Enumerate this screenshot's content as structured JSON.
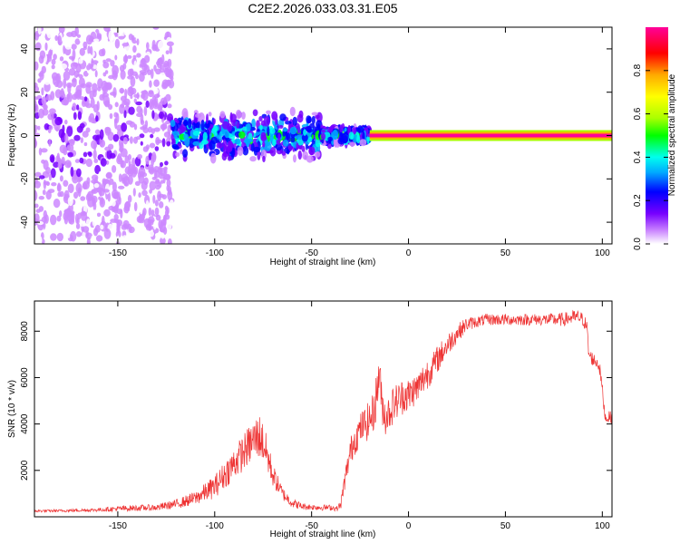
{
  "title": "C2E2.2026.033.03.31.E05",
  "colors": {
    "trace": "#ee3333",
    "axis": "#000000",
    "colormap": [
      "#ffffff",
      "#cc88ff",
      "#7700ff",
      "#0000ff",
      "#00aaff",
      "#00ffee",
      "#00ff00",
      "#aaff00",
      "#ffff00",
      "#ffaa00",
      "#ff0000",
      "#ff0099"
    ]
  },
  "chart_data": [
    {
      "type": "heatmap",
      "name": "spectrogram",
      "xlabel": "Height of straight line (km)",
      "ylabel": "Frequency (Hz)",
      "xlim": [
        -193,
        105
      ],
      "ylim": [
        -50,
        50
      ],
      "x_ticks": [
        -150,
        -100,
        -50,
        0,
        50,
        100
      ],
      "x_tick_labels": [
        "-150",
        "-100",
        "-50",
        "0",
        "50",
        "100"
      ],
      "y_ticks": [
        -40,
        -20,
        0,
        20,
        40
      ],
      "y_tick_labels": [
        "-40",
        "-20",
        "0",
        "20",
        "40"
      ],
      "colorbar": {
        "label": "Normalized spectral amplitude",
        "range": [
          0,
          1
        ],
        "ticks": [
          0.0,
          0.2,
          0.4,
          0.6,
          0.8
        ],
        "tick_labels": [
          "0.0",
          "0.2",
          "0.4",
          "0.6",
          "0.8"
        ]
      },
      "regions": [
        {
          "from": -193,
          "to": -122,
          "description": "broadband noise",
          "freq_spread_hz": 50,
          "amplitude": 0.15
        },
        {
          "from": -122,
          "to": -45,
          "description": "signal spread near 0 Hz",
          "freq_spread_hz": 12,
          "amplitude": 0.45
        },
        {
          "from": -45,
          "to": -20,
          "description": "narrowing signal",
          "freq_spread_hz": 4,
          "amplitude": 0.5
        },
        {
          "from": -20,
          "to": 105,
          "description": "clean carrier at 0 Hz",
          "freq_spread_hz": 1.5,
          "amplitude": 1.0
        }
      ]
    },
    {
      "type": "line",
      "name": "snr",
      "xlabel": "Height of straight line (km)",
      "ylabel": "SNR (10 * v/v)",
      "xlim": [
        -193,
        105
      ],
      "ylim": [
        0,
        9300
      ],
      "x_ticks": [
        -150,
        -100,
        -50,
        0,
        50,
        100
      ],
      "x_tick_labels": [
        "-150",
        "-100",
        "-50",
        "0",
        "50",
        "100"
      ],
      "y_ticks": [
        2000,
        4000,
        6000,
        8000
      ],
      "y_tick_labels": [
        "2000",
        "4000",
        "6000",
        "8000"
      ],
      "series": [
        {
          "name": "SNR",
          "x": [
            -193,
            -180,
            -170,
            -160,
            -150,
            -140,
            -130,
            -120,
            -110,
            -100,
            -95,
            -90,
            -85,
            -80,
            -77,
            -75,
            -72,
            -70,
            -65,
            -60,
            -55,
            -50,
            -45,
            -40,
            -37,
            -35,
            -33,
            -30,
            -28,
            -26,
            -24,
            -22,
            -20,
            -18,
            -16,
            -15,
            -14,
            -12,
            -10,
            -8,
            -6,
            -4,
            -2,
            0,
            2,
            4,
            6,
            8,
            10,
            12,
            15,
            20,
            25,
            30,
            35,
            40,
            50,
            60,
            70,
            80,
            85,
            88,
            90,
            92,
            93,
            95,
            98,
            99,
            100,
            101,
            102,
            103,
            105
          ],
          "y": [
            250,
            260,
            280,
            300,
            350,
            380,
            400,
            550,
            800,
            1300,
            1800,
            2300,
            2800,
            3300,
            3500,
            3200,
            2400,
            1800,
            1000,
            600,
            450,
            420,
            400,
            400,
            350,
            500,
            1500,
            2800,
            3300,
            3600,
            3900,
            4000,
            4200,
            4500,
            5500,
            6500,
            5000,
            4300,
            4500,
            4800,
            5000,
            5100,
            5300,
            5200,
            5400,
            5500,
            5700,
            6000,
            6200,
            6400,
            6800,
            7400,
            7900,
            8300,
            8400,
            8500,
            8500,
            8500,
            8500,
            8500,
            8600,
            8600,
            8500,
            8200,
            7000,
            6800,
            6600,
            6200,
            5500,
            4600,
            4200,
            4300,
            4300
          ],
          "noise": [
            60,
            60,
            70,
            80,
            120,
            130,
            140,
            200,
            300,
            500,
            600,
            700,
            800,
            900,
            1000,
            900,
            700,
            500,
            300,
            200,
            150,
            130,
            130,
            120,
            120,
            200,
            400,
            600,
            700,
            700,
            700,
            800,
            800,
            900,
            1000,
            1100,
            900,
            800,
            800,
            800,
            800,
            800,
            800,
            800,
            700,
            700,
            700,
            700,
            700,
            600,
            600,
            500,
            400,
            300,
            250,
            250,
            250,
            250,
            250,
            300,
            300,
            300,
            300,
            300,
            300,
            300,
            300,
            300,
            300,
            250,
            250,
            250,
            250
          ]
        }
      ]
    }
  ]
}
